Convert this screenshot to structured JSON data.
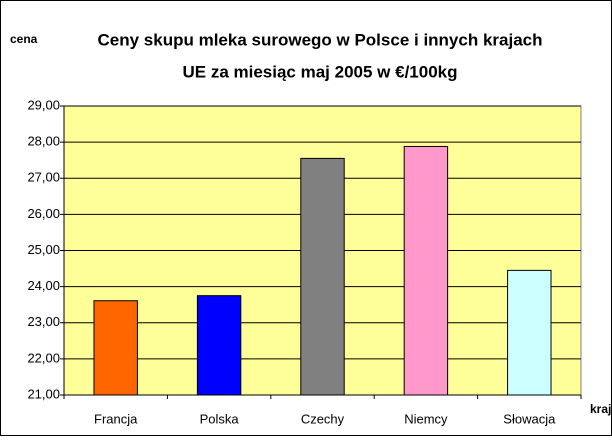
{
  "chart_data": {
    "type": "bar",
    "title": [
      "Ceny skupu mleka surowego w Polsce i innych krajach",
      "UE za miesiąc maj 2005 w €/100kg"
    ],
    "y_label": "cena",
    "x_label": "kraj",
    "categories": [
      "Francja",
      "Polska",
      "Czechy",
      "Niemcy",
      "Słowacja"
    ],
    "values": [
      23.61,
      23.75,
      27.55,
      27.88,
      24.45
    ],
    "colors": [
      "#ff6600",
      "#0000ff",
      "#808080",
      "#ff99cc",
      "#ccffff"
    ],
    "ylim": [
      21,
      29
    ],
    "yticks": [
      {
        "value": 21,
        "label": "21,00"
      },
      {
        "value": 22,
        "label": "22,00"
      },
      {
        "value": 23,
        "label": "23,00"
      },
      {
        "value": 24,
        "label": "24,00"
      },
      {
        "value": 25,
        "label": "25,00"
      },
      {
        "value": 26,
        "label": "26,00"
      },
      {
        "value": 27,
        "label": "27,00"
      },
      {
        "value": 28,
        "label": "28,00"
      },
      {
        "value": 29,
        "label": "29,00"
      }
    ],
    "grid": true,
    "plot_background": "#ffff99"
  }
}
